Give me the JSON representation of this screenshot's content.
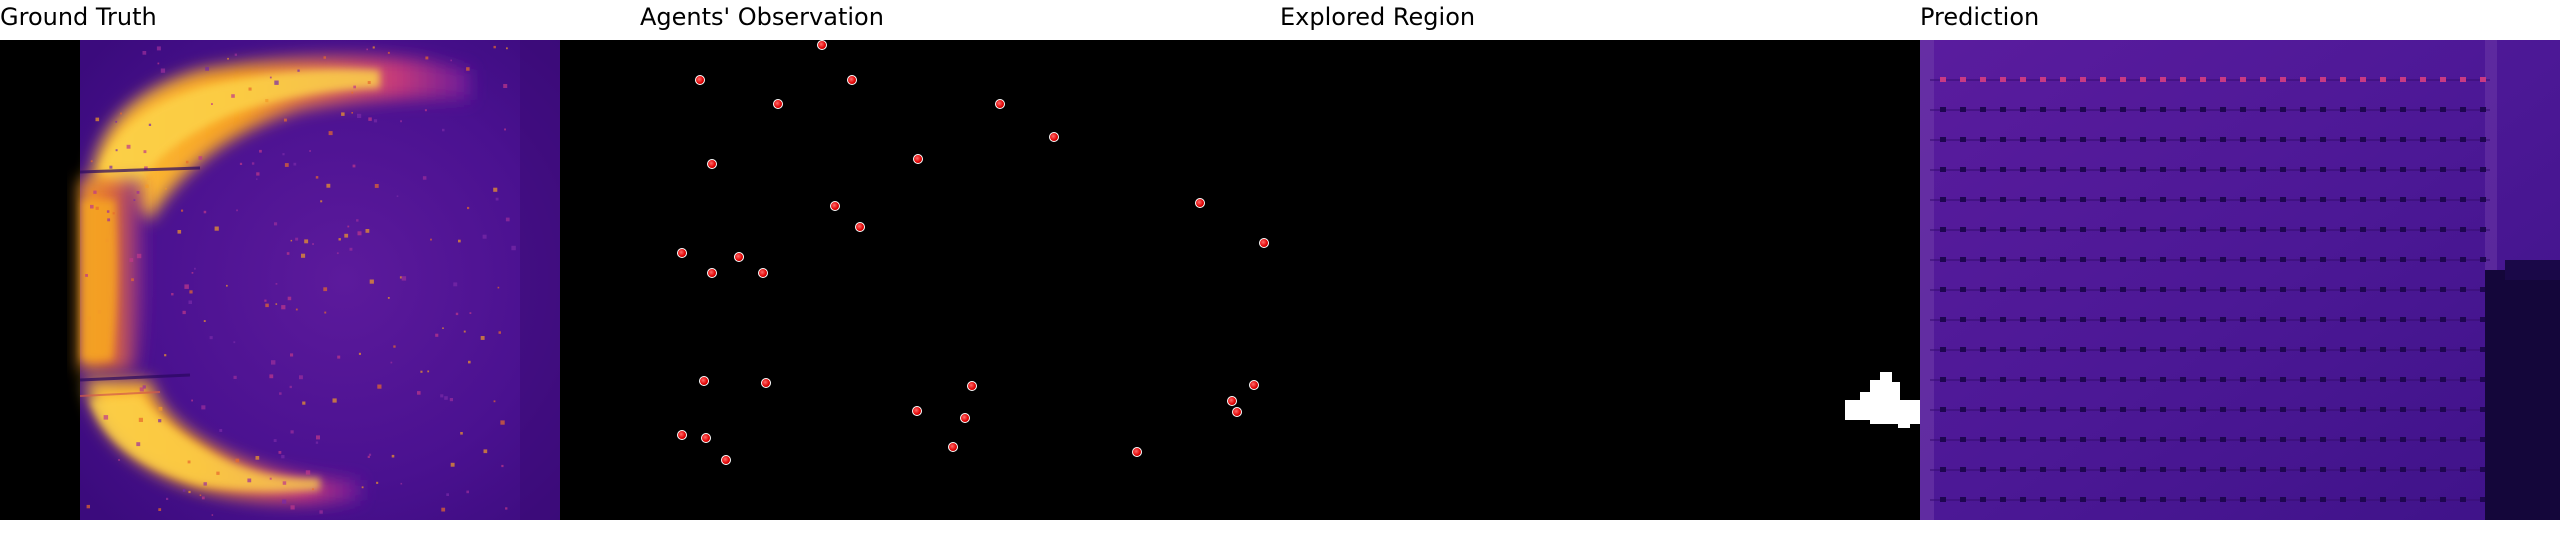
{
  "panels": [
    {
      "id": "ground-truth",
      "title": "Ground Truth"
    },
    {
      "id": "agents-observation",
      "title": "Agents' Observation"
    },
    {
      "id": "explored-region",
      "title": "Explored Region"
    },
    {
      "id": "prediction",
      "title": "Prediction"
    }
  ],
  "agents": {
    "count": 29,
    "marker_color": "#e00000"
  },
  "colormap": {
    "low": "#1a0040",
    "mid_low": "#4b1894",
    "mid": "#b0208a",
    "mid_high": "#f06a20",
    "high": "#fde34a"
  }
}
